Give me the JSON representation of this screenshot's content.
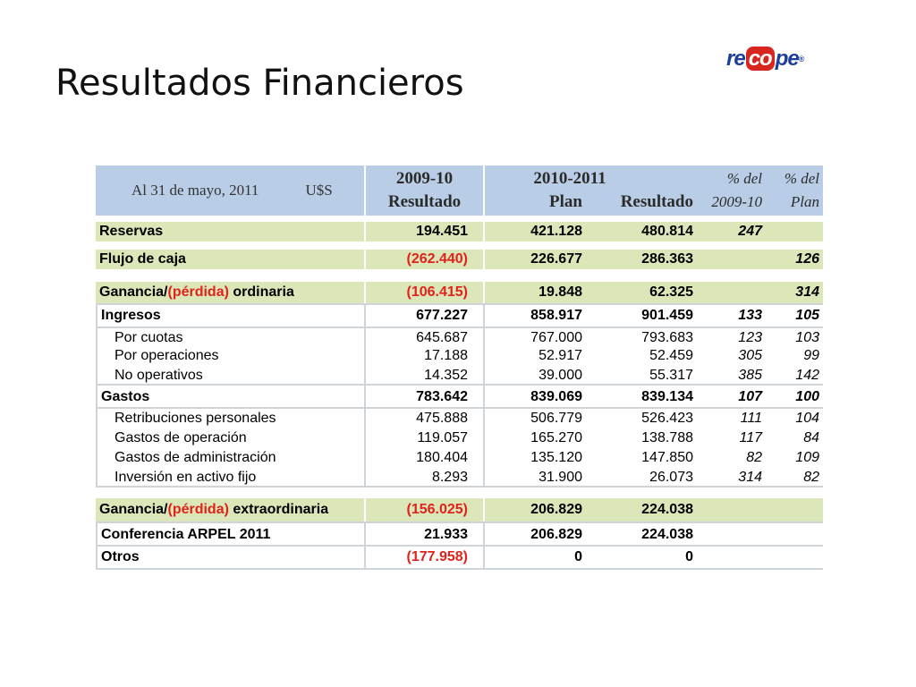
{
  "title": "Resultados Financieros",
  "logo": {
    "part1": "re",
    "part2": "co",
    "part3": "pe",
    "mark": "®"
  },
  "header": {
    "date": "Al 31 de mayo, 2011",
    "currency": "U$S",
    "col1_year": "2009-10",
    "col1_label": "Resultado",
    "col2_year": "2010-2011",
    "col2_plan": "Plan",
    "col2_result": "Resultado",
    "pct1_top": "% del",
    "pct1_bottom": "2009-10",
    "pct2_top": "% del",
    "pct2_bottom": "Plan"
  },
  "rows": {
    "reservas": {
      "label": "Reservas",
      "r0910": "194.451",
      "plan": "421.128",
      "res": "480.814",
      "p1": "247",
      "p2": ""
    },
    "flujo": {
      "label": "Flujo de caja",
      "r0910": "(262.440)",
      "plan": "226.677",
      "res": "286.363",
      "p1": "",
      "p2": "126"
    },
    "ganancia_ord": {
      "label_a": "Ganancia/",
      "label_b": "(pérdida)",
      "label_c": " ordinaria",
      "r0910": "(106.415)",
      "plan": "19.848",
      "res": "62.325",
      "p1": "",
      "p2": "314"
    },
    "ingresos": {
      "label": "Ingresos",
      "r0910": "677.227",
      "plan": "858.917",
      "res": "901.459",
      "p1": "133",
      "p2": "105"
    },
    "cuotas": {
      "label": "Por cuotas",
      "r0910": "645.687",
      "plan": "767.000",
      "res": "793.683",
      "p1": "123",
      "p2": "103"
    },
    "operaciones": {
      "label": "Por operaciones",
      "r0910": "17.188",
      "plan": "52.917",
      "res": "52.459",
      "p1": "305",
      "p2": "99"
    },
    "no_operativos": {
      "label": "No operativos",
      "r0910": "14.352",
      "plan": "39.000",
      "res": "55.317",
      "p1": "385",
      "p2": "142"
    },
    "gastos": {
      "label": "Gastos",
      "r0910": "783.642",
      "plan": "839.069",
      "res": "839.134",
      "p1": "107",
      "p2": "100"
    },
    "retribuciones": {
      "label": "Retribuciones personales",
      "r0910": "475.888",
      "plan": "506.779",
      "res": "526.423",
      "p1": "111",
      "p2": "104"
    },
    "gastos_op": {
      "label": "Gastos de operación",
      "r0910": "119.057",
      "plan": "165.270",
      "res": "138.788",
      "p1": "117",
      "p2": "84"
    },
    "gastos_adm": {
      "label": "Gastos de administración",
      "r0910": "180.404",
      "plan": "135.120",
      "res": "147.850",
      "p1": "82",
      "p2": "109"
    },
    "inversion": {
      "label": "Inversión en activo fijo",
      "r0910": "8.293",
      "plan": "31.900",
      "res": "26.073",
      "p1": "314",
      "p2": "82"
    },
    "ganancia_ext": {
      "label_a": "Ganancia/",
      "label_b": "(pérdida)",
      "label_c": " extraordinaria",
      "r0910": "(156.025)",
      "plan": "206.829",
      "res": "224.038",
      "p1": "",
      "p2": ""
    },
    "arpel": {
      "label": "Conferencia ARPEL 2011",
      "r0910": "21.933",
      "plan": "206.829",
      "res": "224.038",
      "p1": "",
      "p2": ""
    },
    "otros": {
      "label": "Otros",
      "r0910": "(177.958)",
      "plan": "0",
      "res": "0",
      "p1": "",
      "p2": ""
    }
  },
  "colors": {
    "header_bg": "#b9cde6",
    "highlight_bg": "#dbe7b9",
    "negative": "#e0221b",
    "logo_blue": "#1d3f9a",
    "logo_red": "#d7261e"
  }
}
